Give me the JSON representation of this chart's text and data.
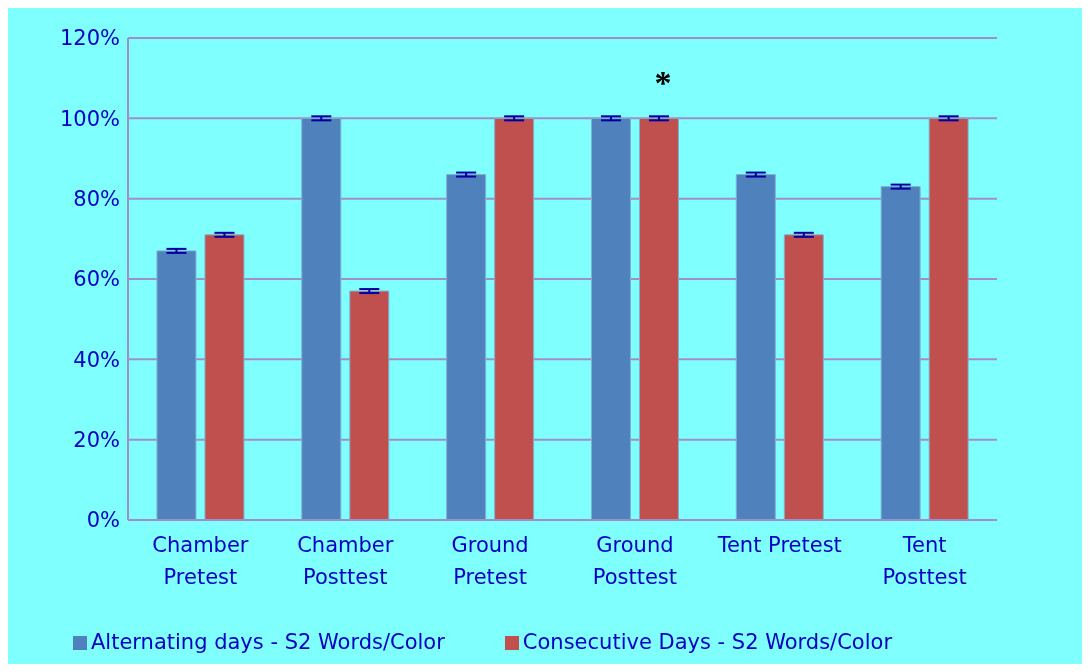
{
  "chart_data": {
    "type": "bar",
    "categories": [
      "Chamber\nPretest",
      "Chamber\nPosttest",
      "Ground\nPretest",
      "Ground\nPosttest",
      "Tent Pretest",
      "Tent\nPosttest"
    ],
    "series": [
      {
        "name": "Alternating days -  S2 Words/Color",
        "color": "#4f81bd",
        "values": [
          67,
          100,
          86,
          100,
          86,
          83
        ],
        "errors": [
          0.5,
          0.5,
          0.5,
          0.5,
          0.5,
          0.5
        ]
      },
      {
        "name": "Consecutive Days - S2 Words/Color",
        "color": "#c0504d",
        "values": [
          71,
          57,
          100,
          100,
          71,
          100
        ],
        "errors": [
          0.5,
          0.5,
          0.5,
          0.5,
          0.5,
          0.5
        ]
      }
    ],
    "ylim": [
      0,
      120
    ],
    "yticks": [
      {
        "value": 0,
        "label": "0%"
      },
      {
        "value": 20,
        "label": "20%"
      },
      {
        "value": 40,
        "label": "40%"
      },
      {
        "value": 60,
        "label": "60%"
      },
      {
        "value": 80,
        "label": "80%"
      },
      {
        "value": 100,
        "label": "100%"
      },
      {
        "value": 120,
        "label": "120%"
      }
    ],
    "grid": "y",
    "legend": "bottom",
    "annotations": [
      {
        "text": "*",
        "x": "Ground\nPosttest",
        "y": 100
      }
    ]
  }
}
